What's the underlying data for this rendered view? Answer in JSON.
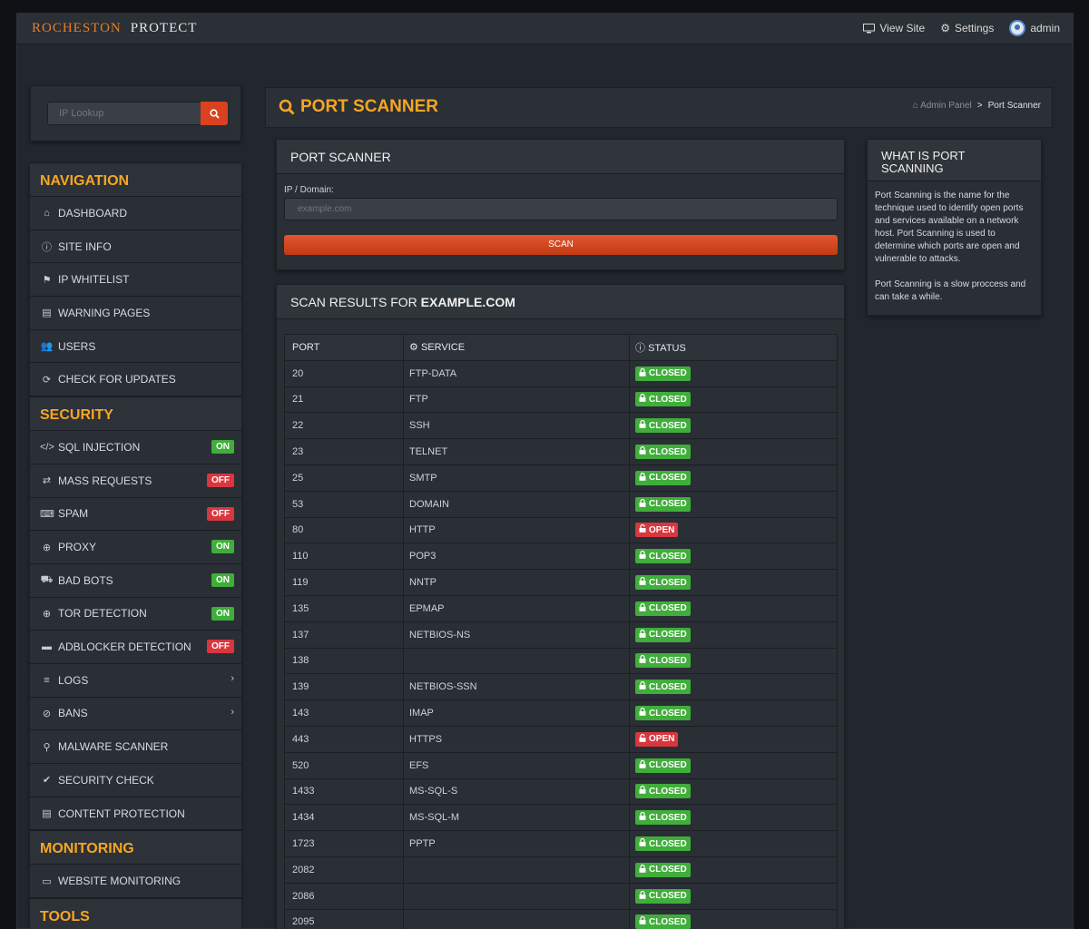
{
  "topbar": {
    "brand_part1": "ROCHESTON",
    "brand_part2": "PROTECT",
    "view_site": "View Site",
    "settings": "Settings",
    "user": "admin"
  },
  "search": {
    "placeholder": "IP Lookup"
  },
  "sidebar": {
    "navigation_title": "NAVIGATION",
    "navigation": [
      {
        "label": "DASHBOARD",
        "icon": "home-icon"
      },
      {
        "label": "SITE INFO",
        "icon": "info-icon"
      },
      {
        "label": "IP WHITELIST",
        "icon": "flag-icon"
      },
      {
        "label": "WARNING PAGES",
        "icon": "file-icon"
      },
      {
        "label": "USERS",
        "icon": "users-icon"
      },
      {
        "label": "CHECK FOR UPDATES",
        "icon": "refresh-icon"
      }
    ],
    "security_title": "SECURITY",
    "security": [
      {
        "label": "SQL INJECTION",
        "icon": "code-icon",
        "badge": "ON"
      },
      {
        "label": "MASS REQUESTS",
        "icon": "retweet-icon",
        "badge": "OFF"
      },
      {
        "label": "SPAM",
        "icon": "keyboard-icon",
        "badge": "OFF"
      },
      {
        "label": "PROXY",
        "icon": "globe-icon",
        "badge": "ON"
      },
      {
        "label": "BAD BOTS",
        "icon": "robot-icon",
        "badge": "ON"
      },
      {
        "label": "TOR DETECTION",
        "icon": "globe-icon",
        "badge": "ON"
      },
      {
        "label": "ADBLOCKER DETECTION",
        "icon": "window-icon",
        "badge": "OFF"
      },
      {
        "label": "LOGS",
        "icon": "list-icon"
      },
      {
        "label": "BANS",
        "icon": "ban-icon"
      },
      {
        "label": "MALWARE SCANNER",
        "icon": "search-icon"
      },
      {
        "label": "SECURITY CHECK",
        "icon": "check-icon"
      },
      {
        "label": "CONTENT PROTECTION",
        "icon": "file-icon"
      }
    ],
    "monitoring_title": "MONITORING",
    "monitoring": [
      {
        "label": "WEBSITE MONITORING",
        "icon": "monitor-icon"
      }
    ],
    "tools_title": "TOOLS"
  },
  "page": {
    "title": "PORT SCANNER",
    "crumb_root": "Admin Panel",
    "crumb_sep": ">",
    "crumb_current": "Port Scanner"
  },
  "scanner": {
    "title": "PORT SCANNER",
    "label": "IP / Domain:",
    "placeholder": "example.com",
    "button": "SCAN"
  },
  "results": {
    "title_prefix": "SCAN RESULTS FOR",
    "title_domain": "EXAMPLE.COM",
    "col_port": "PORT",
    "col_service": "SERVICE",
    "col_status": "STATUS",
    "rows": [
      {
        "port": "20",
        "service": "FTP-DATA",
        "status": "CLOSED"
      },
      {
        "port": "21",
        "service": "FTP",
        "status": "CLOSED"
      },
      {
        "port": "22",
        "service": "SSH",
        "status": "CLOSED"
      },
      {
        "port": "23",
        "service": "TELNET",
        "status": "CLOSED"
      },
      {
        "port": "25",
        "service": "SMTP",
        "status": "CLOSED"
      },
      {
        "port": "53",
        "service": "DOMAIN",
        "status": "CLOSED"
      },
      {
        "port": "80",
        "service": "HTTP",
        "status": "OPEN"
      },
      {
        "port": "110",
        "service": "POP3",
        "status": "CLOSED"
      },
      {
        "port": "119",
        "service": "NNTP",
        "status": "CLOSED"
      },
      {
        "port": "135",
        "service": "EPMAP",
        "status": "CLOSED"
      },
      {
        "port": "137",
        "service": "NETBIOS-NS",
        "status": "CLOSED"
      },
      {
        "port": "138",
        "service": "",
        "status": "CLOSED"
      },
      {
        "port": "139",
        "service": "NETBIOS-SSN",
        "status": "CLOSED"
      },
      {
        "port": "143",
        "service": "IMAP",
        "status": "CLOSED"
      },
      {
        "port": "443",
        "service": "HTTPS",
        "status": "OPEN"
      },
      {
        "port": "520",
        "service": "EFS",
        "status": "CLOSED"
      },
      {
        "port": "1433",
        "service": "MS-SQL-S",
        "status": "CLOSED"
      },
      {
        "port": "1434",
        "service": "MS-SQL-M",
        "status": "CLOSED"
      },
      {
        "port": "1723",
        "service": "PPTP",
        "status": "CLOSED"
      },
      {
        "port": "2082",
        "service": "",
        "status": "CLOSED"
      },
      {
        "port": "2086",
        "service": "",
        "status": "CLOSED"
      },
      {
        "port": "2095",
        "service": "",
        "status": "CLOSED"
      }
    ]
  },
  "info": {
    "title": "WHAT IS PORT SCANNING",
    "p1": "Port Scanning is the name for the technique used to identify open ports and services available on a network host. Port Scanning is used to determine which ports are open and vulnerable to attacks.",
    "p2": "Port Scanning is a slow proccess and can take a while."
  },
  "colors": {
    "accent": "#f5a623",
    "brand_orange": "#e0802a",
    "scan_button": "#d9411f",
    "on_badge": "#3fae3a",
    "off_badge": "#d9363e"
  }
}
